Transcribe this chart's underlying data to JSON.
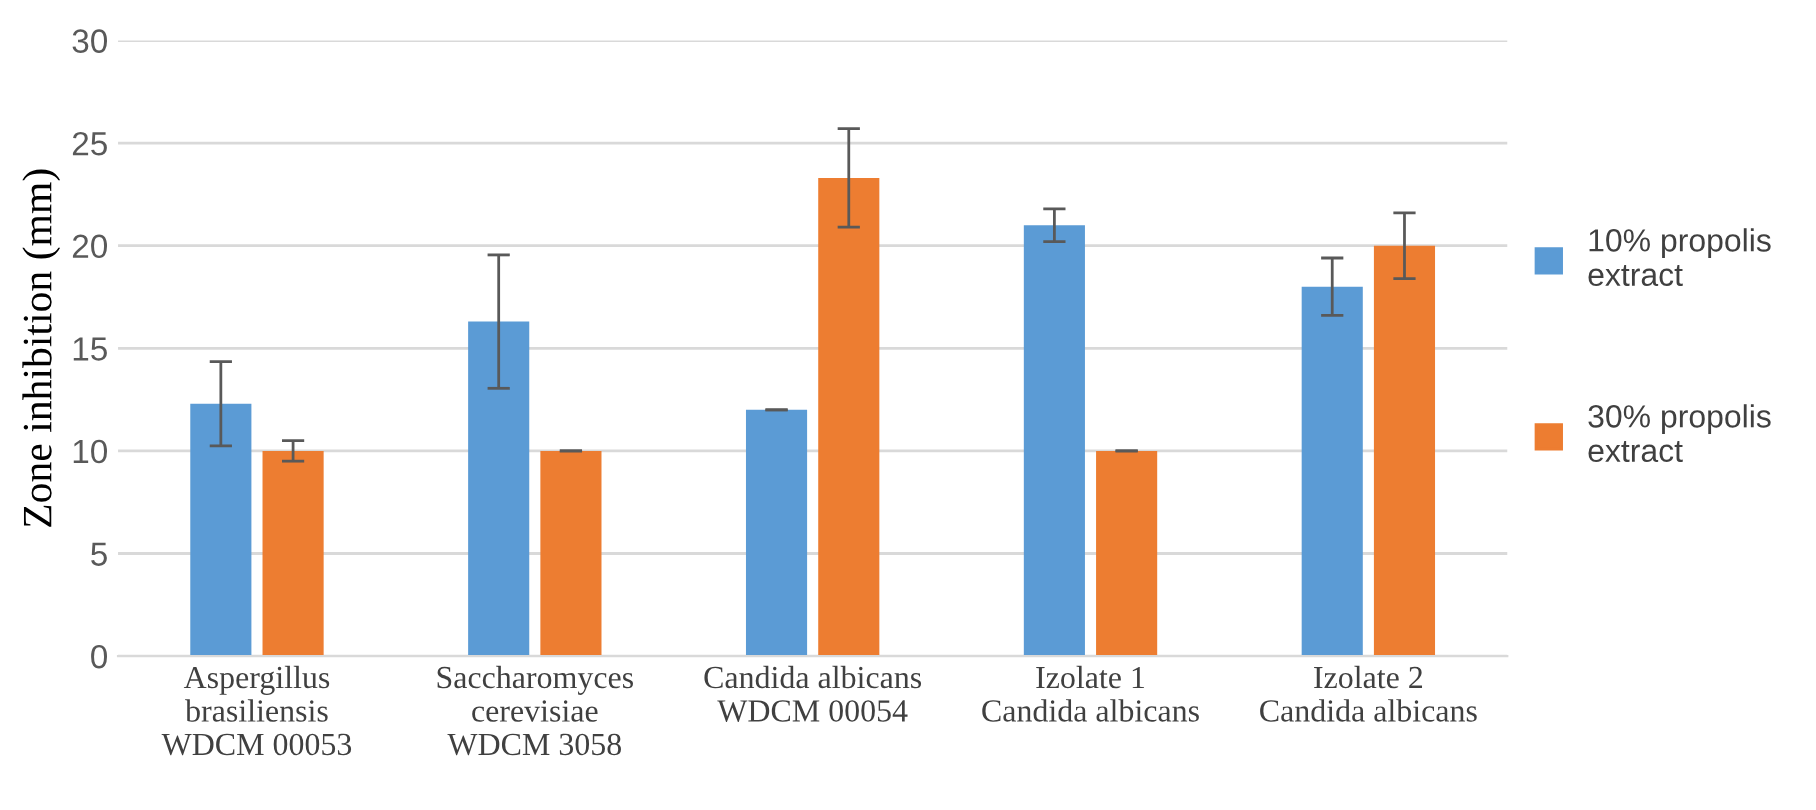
{
  "chart_data": {
    "type": "bar",
    "ylabel": "Zone inhibition (mm)",
    "categories": [
      "Aspergillus\nbrasiliensis\nWDCM 00053",
      "Saccharomyces\ncerevisiae\nWDCM 3058",
      "Candida albicans\nWDCM 00054",
      "Izolate 1\nCandida albicans",
      "Izolate 2\nCandida albicans"
    ],
    "series": [
      {
        "name": "10% propolis\nextract",
        "color": "#5b9bd5",
        "values": [
          12.3,
          16.3,
          12,
          21,
          18
        ],
        "errors": [
          2.05,
          3.25,
          0,
          0.8,
          1.4
        ]
      },
      {
        "name": "30% propolis\nextract",
        "color": "#ed7d31",
        "values": [
          10,
          10,
          23.3,
          10,
          20
        ],
        "errors": [
          0.5,
          0,
          2.4,
          0,
          1.6
        ]
      }
    ],
    "ylim": [
      0,
      30
    ],
    "yticks": [
      0,
      5,
      10,
      15,
      20,
      25,
      30
    ],
    "grid": "y",
    "legend": "right"
  }
}
